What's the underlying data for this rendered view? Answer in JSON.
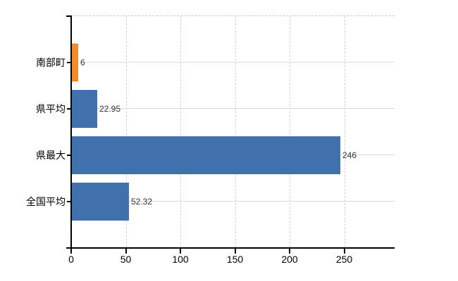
{
  "page": {
    "background": "#ffffff"
  },
  "chart_data": {
    "type": "bar",
    "orientation": "horizontal",
    "title": "",
    "categories": [
      "南部町",
      "県平均",
      "県最大",
      "全国平均"
    ],
    "values": [
      6,
      22.95,
      246,
      52.32
    ],
    "value_labels": [
      "6",
      "22.95",
      "246",
      "52.32"
    ],
    "bar_colors": [
      "#ee8c31",
      "#4171ad",
      "#4171ad",
      "#4171ad"
    ],
    "x_ticks": [
      0,
      50,
      100,
      150,
      200,
      250
    ],
    "x_tick_labels": [
      "0",
      "50",
      "100",
      "150",
      "200",
      "250"
    ],
    "xlim": [
      0,
      296
    ],
    "grid": true,
    "legend": "none",
    "colors": {
      "bar_default": "#4171ad",
      "bar_highlight": "#ee8c31",
      "axis": "#000000",
      "h_gridline": "#d5ddd6",
      "v_gridline": "#d6d2d4",
      "top_border": "#c9c9c9",
      "value_label_text": "#333333",
      "axis_label_text": "#000000"
    }
  }
}
